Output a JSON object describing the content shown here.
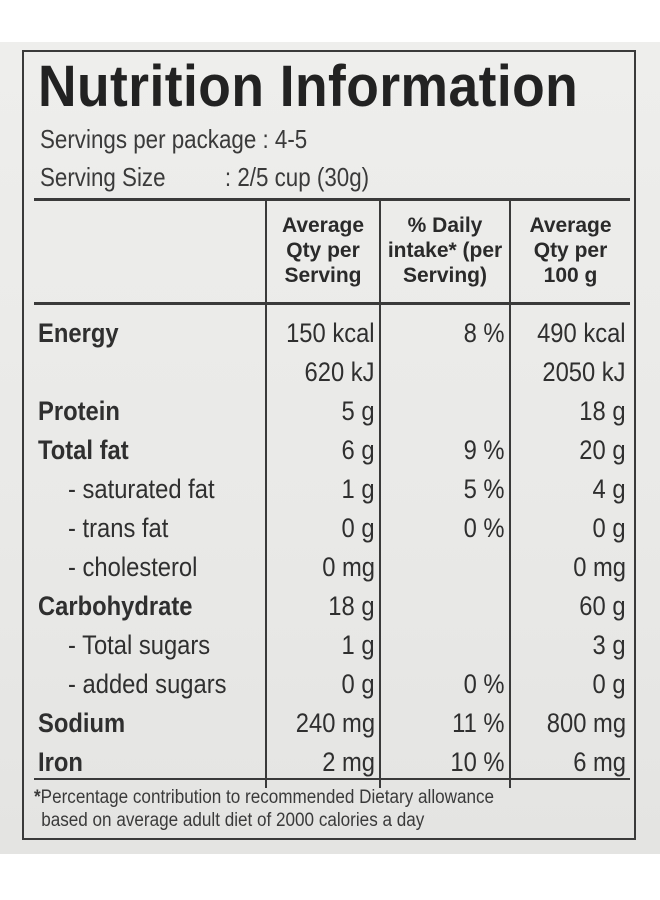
{
  "title": "Nutrition Information",
  "servings": {
    "label": "Servings per package :",
    "value": "4-5"
  },
  "serving_size": {
    "label": "Serving Size",
    "value": ": 2/5 cup (30g)"
  },
  "columns": {
    "per_serving": [
      "Average",
      "Qty per",
      "Serving"
    ],
    "daily_intake": [
      "% Daily",
      "intake* (per",
      "Serving)"
    ],
    "per_100g": [
      "Average",
      "Qty per",
      "100 g"
    ]
  },
  "rows": [
    {
      "label": "Energy",
      "per_serving": "150 kcal",
      "daily": "8 %",
      "per_100g": "490 kcal"
    },
    {
      "label": "",
      "per_serving": "620 kJ",
      "daily": "",
      "per_100g": "2050 kJ"
    },
    {
      "label": "Protein",
      "per_serving": "5 g",
      "daily": "",
      "per_100g": "18 g"
    },
    {
      "label": "Total fat",
      "per_serving": "6 g",
      "daily": "9 %",
      "per_100g": "20 g"
    },
    {
      "label": "- saturated fat",
      "per_serving": "1 g",
      "daily": "5 %",
      "per_100g": "4 g"
    },
    {
      "label": "- trans fat",
      "per_serving": "0 g",
      "daily": "0 %",
      "per_100g": "0 g"
    },
    {
      "label": "- cholesterol",
      "per_serving": "0 mg",
      "daily": "",
      "per_100g": "0 mg"
    },
    {
      "label": "Carbohydrate",
      "per_serving": "18 g",
      "daily": "",
      "per_100g": "60 g"
    },
    {
      "label": "- Total sugars",
      "per_serving": "1 g",
      "daily": "",
      "per_100g": "3 g"
    },
    {
      "label": "- added sugars",
      "per_serving": "0 g",
      "daily": "0 %",
      "per_100g": "0 g"
    },
    {
      "label": "Sodium",
      "per_serving": "240 mg",
      "daily": "11 %",
      "per_100g": "800 mg"
    },
    {
      "label": "Iron",
      "per_serving": "2 mg",
      "daily": "10 %",
      "per_100g": "6 mg"
    }
  ],
  "footnote": {
    "star": "*",
    "line1": "Percentage contribution to recommended Dietary allowance",
    "line2": "based on average adult diet of 2000 calories a day"
  }
}
